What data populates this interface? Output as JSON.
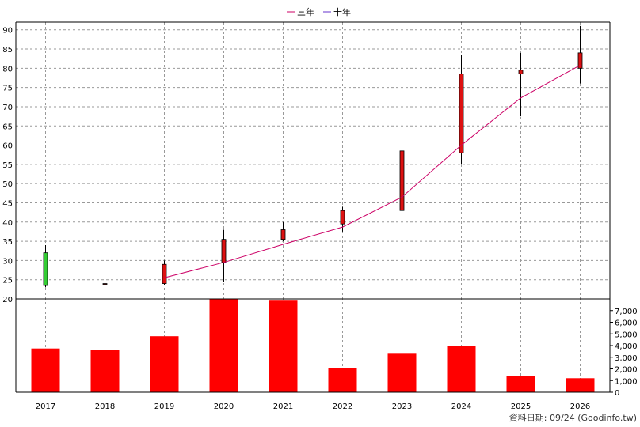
{
  "legend": [
    {
      "label": "三年",
      "color": "#cc0066"
    },
    {
      "label": "十年",
      "color": "#6633cc"
    }
  ],
  "footer": "資料日期: 09/24  (Goodinfo.tw)",
  "chart_data": {
    "type": "candlestick",
    "categories": [
      "2017",
      "2018",
      "2019",
      "2020",
      "2021",
      "2022",
      "2023",
      "2024",
      "2025",
      "2026"
    ],
    "price_axis": {
      "ylim": [
        20,
        92
      ],
      "ticks": [
        20,
        25,
        30,
        35,
        40,
        45,
        50,
        55,
        60,
        65,
        70,
        75,
        80,
        85,
        90
      ]
    },
    "volume_axis": {
      "ylim": [
        0,
        8000
      ],
      "ticks": [
        0,
        1000,
        2000,
        3000,
        4000,
        5000,
        6000,
        7000
      ],
      "tick_labels": [
        "0",
        "1,000",
        "2,000",
        "3,000",
        "4,000",
        "5,000",
        "6,000",
        "7,000"
      ]
    },
    "candles": [
      {
        "open": 23.5,
        "close": 32,
        "high": 34,
        "low": 23
      },
      {
        "open": 24,
        "close": 23.8,
        "high": 25,
        "low": 20
      },
      {
        "open": 24,
        "close": 29,
        "high": 30,
        "low": 23.5
      },
      {
        "open": 29.5,
        "close": 35.5,
        "high": 38,
        "low": 24.5
      },
      {
        "open": 35.5,
        "close": 38,
        "high": 40,
        "low": 35
      },
      {
        "open": 39.5,
        "close": 43,
        "high": 44,
        "low": 37.5
      },
      {
        "open": 43,
        "close": 58.5,
        "high": 61.5,
        "low": 43
      },
      {
        "open": 58,
        "close": 78.5,
        "high": 83.5,
        "low": 55
      },
      {
        "open": 78.5,
        "close": 79.5,
        "high": 84,
        "low": 67.5
      },
      {
        "open": 80,
        "close": 84,
        "high": 91,
        "low": 76
      }
    ],
    "volume": [
      3750,
      3650,
      4800,
      8000,
      7850,
      2050,
      3300,
      4000,
      1400,
      1200
    ],
    "series": [
      {
        "name": "三年",
        "color": "#cc0066",
        "values": [
          null,
          null,
          25.5,
          29.5,
          34.2,
          38.7,
          46.5,
          60,
          72.3,
          80.8
        ]
      }
    ],
    "grid": true
  }
}
